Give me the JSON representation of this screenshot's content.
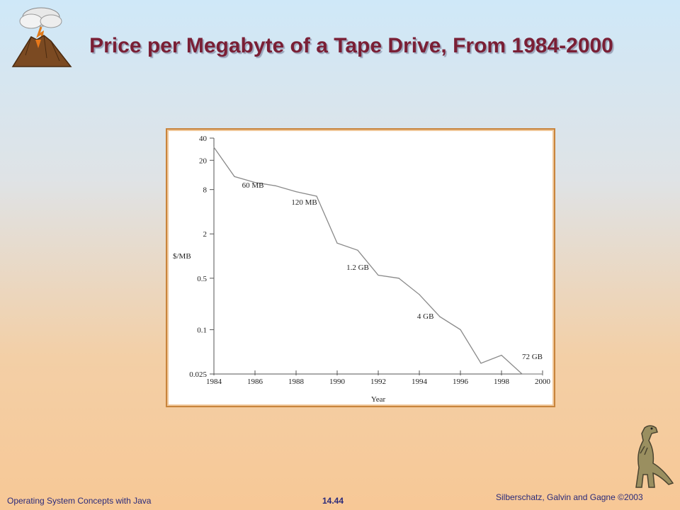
{
  "slide": {
    "title": "Price per Megabyte of a Tape Drive, From 1984-2000"
  },
  "footer": {
    "left": "Operating System Concepts with Java",
    "center": "14.44",
    "right": "Silberschatz, Galvin and Gagne ©2003"
  },
  "chart_data": {
    "type": "line",
    "title": "",
    "xlabel": "Year",
    "ylabel": "$/MB",
    "x_ticks": [
      1984,
      1986,
      1988,
      1990,
      1992,
      1994,
      1996,
      1998,
      2000
    ],
    "y_ticks": [
      40,
      20,
      8,
      2,
      0.5,
      0.1,
      0.025
    ],
    "y_tick_labels": [
      "40",
      "20",
      "8",
      "2",
      "0.5",
      "0.1",
      "0.025"
    ],
    "y_scale": "log",
    "xlim": [
      1984,
      2000
    ],
    "ylim": [
      0.025,
      40
    ],
    "grid": false,
    "series": [
      {
        "x": [
          1984,
          1985,
          1986,
          1987,
          1988,
          1989,
          1990,
          1991,
          1992,
          1993,
          1994,
          1995,
          1996,
          1997,
          1998,
          1999,
          2000
        ],
        "y": [
          30,
          12,
          10,
          9,
          7.5,
          6.5,
          1.5,
          1.2,
          0.55,
          0.5,
          0.3,
          0.15,
          0.1,
          0.035,
          0.045,
          0.025,
          0.025
        ]
      }
    ],
    "annotations": [
      {
        "text": "60 MB",
        "x": 1985.9,
        "y": 8.5
      },
      {
        "text": "120 MB",
        "x": 1988.4,
        "y": 5.0
      },
      {
        "text": "1.2 GB",
        "x": 1991.0,
        "y": 0.65
      },
      {
        "text": "4 GB",
        "x": 1994.3,
        "y": 0.14
      },
      {
        "text": "72 GB",
        "x": 1999.5,
        "y": 0.04
      }
    ],
    "line_color": "#8a8a8a"
  }
}
